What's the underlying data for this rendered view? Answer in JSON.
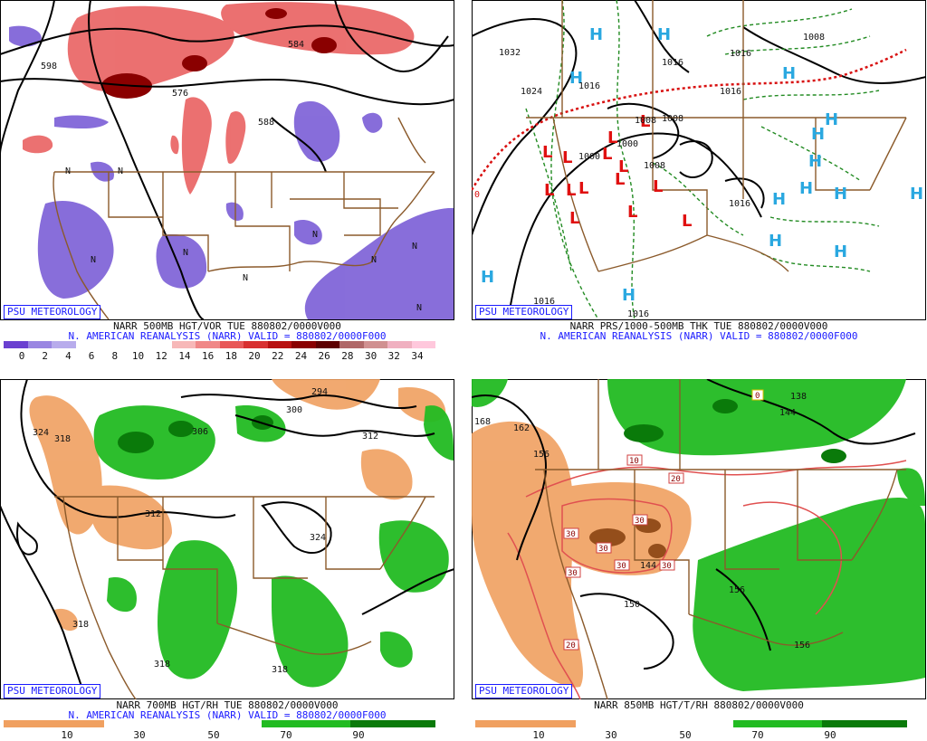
{
  "colors": {
    "psu": "#1a1aff",
    "borders": "#8b5a2b",
    "purple": "#7b5ed6",
    "red_dark": "#b01010",
    "green": "#22bb22",
    "orange": "#f0a060",
    "high": "#2aa8e0",
    "low": "#e01010"
  },
  "panels": [
    {
      "id": "vort500",
      "logo": "PSU METEOROLOGY",
      "caption1": "NARR 500MB HGT/VOR TUE 880802/0000V000",
      "caption2": "N. AMERICAN REANALYSIS (NARR) VALID = 880802/0000F000",
      "colorbar_colors": [
        "#6a40d0",
        "#9a86e2",
        "#b8acec",
        "#ffffff",
        "#ffffff",
        "#ffffff",
        "#ffffff",
        "#f7b8b8",
        "#f08888",
        "#e85858",
        "#d83030",
        "#b81010",
        "#8a0000",
        "#5e0000",
        "#b06868",
        "#d09090",
        "#f0b0c0",
        "#ffc8dc"
      ],
      "colorbar_labels": [
        "0",
        "2",
        "4",
        "6",
        "8",
        "10",
        "12",
        "14",
        "16",
        "18",
        "20",
        "22",
        "24",
        "26",
        "28",
        "30",
        "32",
        "34"
      ],
      "map_labels": [
        "598",
        "584",
        "576",
        "588",
        "N",
        "N",
        "N",
        "N",
        "N",
        "N",
        "N",
        "N",
        "N"
      ]
    },
    {
      "id": "prs_thk",
      "logo": "PSU METEOROLOGY",
      "caption1": "NARR PRS/1000-500MB THK TUE 880802/0000V000",
      "caption2": "N. AMERICAN REANALYSIS (NARR) VALID = 880802/0000F000",
      "map_labels": [
        "1032",
        "1024",
        "1016",
        "1016",
        "1008",
        "1008",
        "1000",
        "1000",
        "1008",
        "1016",
        "1016",
        "1016",
        "1016",
        "1016",
        "1008",
        "0"
      ],
      "highs": [
        "H",
        "H",
        "H",
        "H",
        "H",
        "H",
        "H",
        "H",
        "H",
        "H",
        "H",
        "H",
        "H",
        "H",
        "H"
      ],
      "lows": [
        "L",
        "L",
        "L",
        "L",
        "L",
        "L",
        "L",
        "L",
        "L",
        "L",
        "L",
        "L",
        "L",
        "L"
      ]
    },
    {
      "id": "rh700",
      "logo": "PSU METEOROLOGY",
      "caption1": "NARR 700MB HGT/RH TUE 880802/0000V000",
      "caption2": "N. AMERICAN REANALYSIS (NARR) VALID = 880802/0000F000",
      "colorbar_labels": [
        "10",
        "30",
        "50",
        "70",
        "90"
      ],
      "map_labels": [
        "324",
        "318",
        "306",
        "300",
        "294",
        "312",
        "312",
        "324",
        "318",
        "318",
        "318"
      ]
    },
    {
      "id": "t850",
      "logo": "PSU METEOROLOGY",
      "caption1": "NARR 850MB HGT/T/RH 880802/0000V000",
      "colorbar_labels": [
        "10",
        "30",
        "50",
        "70",
        "90"
      ],
      "map_labels": [
        "168",
        "162",
        "156",
        "138",
        "144",
        "150",
        "156",
        "156",
        "144"
      ],
      "temp_labels": [
        "10",
        "20",
        "30",
        "30",
        "30",
        "30",
        "30",
        "30",
        "20",
        "0"
      ]
    }
  ]
}
